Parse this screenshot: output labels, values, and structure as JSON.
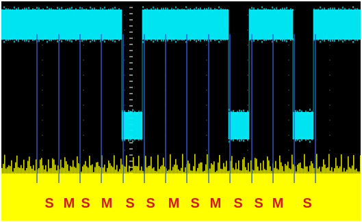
{
  "screen": {
    "background": "#000000",
    "trace_color": "#00f0ff",
    "noise_color": "#ffff00",
    "marker_color": "#2f5fd0",
    "label_color": "#d21a10"
  },
  "trace": {
    "levels": [
      "high",
      "high",
      "gap",
      "high",
      "low",
      "high",
      "low",
      "high"
    ]
  },
  "markers": {
    "labels": [
      "S",
      "M",
      "S",
      "M",
      "S",
      "S",
      "M",
      "S",
      "M",
      "S",
      "S",
      "M",
      "S"
    ]
  }
}
